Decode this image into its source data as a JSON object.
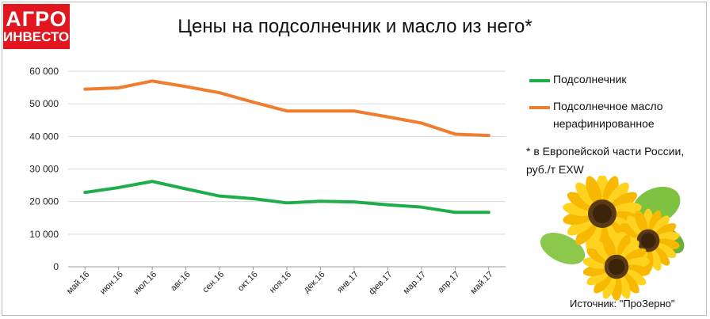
{
  "logo": {
    "line1": "АГРО",
    "line2": "ИНВЕСТОР"
  },
  "chart_data": {
    "type": "line",
    "title": "Цены на подсолнечник и масло из него*",
    "categories": [
      "май.16",
      "июн.16",
      "июл.16",
      "авг.16",
      "сен.16",
      "окт.16",
      "ноя.16",
      "дек.16",
      "янв.17",
      "фев.17",
      "мар.17",
      "апр.17",
      "май.17"
    ],
    "series": [
      {
        "name": "Подсолнечник",
        "color": "#1fad4b",
        "values": [
          22800,
          24300,
          26200,
          23900,
          21700,
          20900,
          19600,
          20100,
          19900,
          19000,
          18300,
          16700,
          16700
        ]
      },
      {
        "name": "Подсолнечное масло нерафинированное",
        "color": "#ef7d2f",
        "values": [
          54500,
          54900,
          57000,
          55300,
          53400,
          50500,
          47800,
          47800,
          47800,
          46000,
          44100,
          40700,
          40300
        ]
      }
    ],
    "ylim": [
      0,
      60000
    ],
    "yticks": [
      0,
      10000,
      20000,
      30000,
      40000,
      50000,
      60000
    ],
    "ytick_labels": [
      "0",
      "10 000",
      "20 000",
      "30 000",
      "40 000",
      "50 000",
      "60 000"
    ],
    "grid": true,
    "legend_position": "right"
  },
  "legend": {
    "item1": "Подсолнечник",
    "item2_line1": "Подсолнечное масло",
    "item2_line2": "нерафинированное"
  },
  "note": {
    "line1": "* в Европейской части России,",
    "line2": "руб./т EXW"
  },
  "source": "Источник: \"ПроЗерно\""
}
